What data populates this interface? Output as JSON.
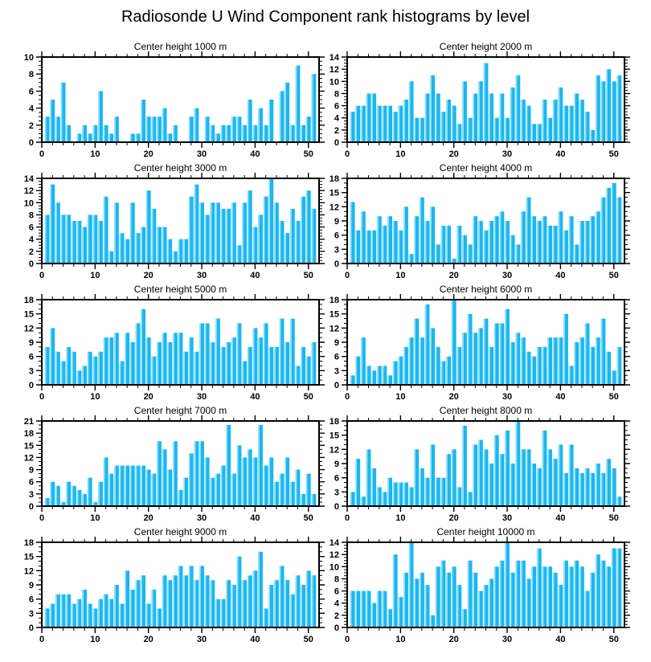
{
  "page_title": "Radiosonde U Wind Component rank histograms by level",
  "grid": {
    "rows": 5,
    "cols": 2
  },
  "colors": {
    "bar_main": "#18b7f3",
    "bar_highlight": "#8fdcf9",
    "axis": "#000000",
    "background": "#ffffff"
  },
  "chart_data": [
    {
      "type": "bar",
      "title": "Center height 1000 m",
      "xlabel": "",
      "ylabel": "",
      "xlim": [
        0,
        52
      ],
      "ylim": [
        0,
        10
      ],
      "xticks": [
        0,
        10,
        20,
        30,
        40,
        50
      ],
      "ytick_step": 2,
      "x_minor_step": 2,
      "y_minor_step": 0.5,
      "x_start": 1,
      "values": [
        3,
        5,
        3,
        7,
        2,
        0,
        1,
        2,
        1,
        2,
        6,
        2,
        1,
        3,
        0,
        0,
        1,
        1,
        5,
        3,
        3,
        3,
        4,
        1,
        2,
        0,
        0,
        3,
        4,
        0,
        3,
        2,
        1,
        2,
        2,
        3,
        3,
        2,
        5,
        2,
        4,
        2,
        5,
        0,
        6,
        7,
        2,
        9,
        2,
        3,
        8
      ]
    },
    {
      "type": "bar",
      "title": "Center height 2000 m",
      "xlabel": "",
      "ylabel": "",
      "xlim": [
        0,
        52
      ],
      "ylim": [
        0,
        14
      ],
      "xticks": [
        0,
        10,
        20,
        30,
        40,
        50
      ],
      "ytick_step": 2,
      "x_minor_step": 2,
      "y_minor_step": 0.5,
      "x_start": 1,
      "values": [
        5,
        6,
        6,
        8,
        8,
        6,
        6,
        6,
        5,
        6,
        7,
        10,
        4,
        4,
        8,
        11,
        8,
        5,
        7,
        6,
        3,
        10,
        4,
        8,
        10,
        13,
        8,
        4,
        8,
        4,
        9,
        11,
        7,
        6,
        3,
        3,
        7,
        4,
        7,
        9,
        6,
        6,
        8,
        7,
        5,
        2,
        11,
        10,
        12,
        10,
        11
      ]
    },
    {
      "type": "bar",
      "title": "Center height 3000 m",
      "xlabel": "",
      "ylabel": "",
      "xlim": [
        0,
        52
      ],
      "ylim": [
        0,
        14
      ],
      "xticks": [
        0,
        10,
        20,
        30,
        40,
        50
      ],
      "ytick_step": 2,
      "x_minor_step": 2,
      "y_minor_step": 0.5,
      "x_start": 1,
      "values": [
        8,
        13,
        10,
        8,
        8,
        7,
        7,
        6,
        8,
        8,
        7,
        11,
        2,
        10,
        5,
        4,
        10,
        5,
        6,
        12,
        9,
        6,
        6,
        4,
        2,
        4,
        4,
        11,
        13,
        10,
        8,
        10,
        10,
        9,
        9,
        10,
        3,
        10,
        12,
        6,
        8,
        11,
        14,
        10,
        7,
        5,
        9,
        7,
        11,
        12,
        9
      ]
    },
    {
      "type": "bar",
      "title": "Center height 4000 m",
      "xlabel": "",
      "ylabel": "",
      "xlim": [
        0,
        52
      ],
      "ylim": [
        0,
        18
      ],
      "xticks": [
        0,
        10,
        20,
        30,
        40,
        50
      ],
      "ytick_step": 3,
      "x_minor_step": 2,
      "y_minor_step": 1,
      "x_start": 1,
      "values": [
        13,
        7,
        11,
        7,
        7,
        10,
        8,
        10,
        9,
        7,
        12,
        2,
        10,
        14,
        9,
        12,
        4,
        8,
        8,
        1,
        8,
        6,
        4,
        10,
        9,
        7,
        9,
        10,
        11,
        9,
        6,
        4,
        11,
        14,
        10,
        9,
        10,
        8,
        8,
        11,
        7,
        10,
        4,
        9,
        9,
        10,
        11,
        14,
        16,
        17,
        14
      ]
    },
    {
      "type": "bar",
      "title": "Center height 5000 m",
      "xlabel": "",
      "ylabel": "",
      "xlim": [
        0,
        52
      ],
      "ylim": [
        0,
        18
      ],
      "xticks": [
        0,
        10,
        20,
        30,
        40,
        50
      ],
      "ytick_step": 3,
      "x_minor_step": 2,
      "y_minor_step": 1,
      "x_start": 1,
      "values": [
        8,
        12,
        7,
        5,
        8,
        7,
        3,
        4,
        7,
        6,
        7,
        10,
        10,
        11,
        5,
        11,
        9,
        13,
        16,
        10,
        6,
        9,
        11,
        9,
        11,
        11,
        7,
        10,
        7,
        13,
        13,
        9,
        14,
        8,
        9,
        10,
        13,
        5,
        8,
        12,
        10,
        13,
        8,
        8,
        14,
        9,
        14,
        4,
        8,
        6,
        9
      ]
    },
    {
      "type": "bar",
      "title": "Center height 6000 m",
      "xlabel": "",
      "ylabel": "",
      "xlim": [
        0,
        52
      ],
      "ylim": [
        0,
        18
      ],
      "xticks": [
        0,
        10,
        20,
        30,
        40,
        50
      ],
      "ytick_step": 3,
      "x_minor_step": 2,
      "y_minor_step": 1,
      "x_start": 1,
      "values": [
        2,
        6,
        10,
        4,
        3,
        4,
        4,
        2,
        5,
        6,
        8,
        10,
        14,
        10,
        17,
        12,
        8,
        5,
        6,
        18,
        8,
        11,
        15,
        11,
        12,
        14,
        8,
        13,
        13,
        16,
        9,
        11,
        10,
        7,
        6,
        8,
        8,
        10,
        10,
        10,
        15,
        4,
        9,
        10,
        13,
        8,
        10,
        14,
        7,
        3,
        8
      ]
    },
    {
      "type": "bar",
      "title": "Center height 7000 m",
      "xlabel": "",
      "ylabel": "",
      "xlim": [
        0,
        52
      ],
      "ylim": [
        0,
        21
      ],
      "xticks": [
        0,
        10,
        20,
        30,
        40,
        50
      ],
      "ytick_step": 3,
      "x_minor_step": 2,
      "y_minor_step": 1,
      "x_start": 1,
      "values": [
        2,
        6,
        5,
        1,
        6,
        5,
        4,
        3,
        7,
        1,
        6,
        12,
        8,
        10,
        10,
        10,
        10,
        10,
        10,
        9,
        8,
        16,
        14,
        9,
        16,
        4,
        7,
        13,
        16,
        16,
        12,
        7,
        8,
        10,
        20,
        8,
        15,
        12,
        14,
        12,
        20,
        10,
        12,
        6,
        8,
        12,
        6,
        9,
        3,
        8,
        3
      ]
    },
    {
      "type": "bar",
      "title": "Center height 8000 m",
      "xlabel": "",
      "ylabel": "",
      "xlim": [
        0,
        52
      ],
      "ylim": [
        0,
        18
      ],
      "xticks": [
        0,
        10,
        20,
        30,
        40,
        50
      ],
      "ytick_step": 3,
      "x_minor_step": 2,
      "y_minor_step": 1,
      "x_start": 1,
      "values": [
        3,
        10,
        2,
        12,
        8,
        4,
        3,
        6,
        5,
        5,
        5,
        4,
        12,
        8,
        6,
        13,
        6,
        6,
        11,
        12,
        4,
        17,
        3,
        13,
        14,
        12,
        9,
        15,
        11,
        16,
        9,
        18,
        12,
        12,
        9,
        8,
        16,
        12,
        10,
        13,
        7,
        13,
        8,
        7,
        8,
        7,
        9,
        7,
        10,
        8,
        2
      ]
    },
    {
      "type": "bar",
      "title": "Center height 9000 m",
      "xlabel": "",
      "ylabel": "",
      "xlim": [
        0,
        52
      ],
      "ylim": [
        0,
        18
      ],
      "xticks": [
        0,
        10,
        20,
        30,
        40,
        50
      ],
      "ytick_step": 3,
      "x_minor_step": 2,
      "y_minor_step": 1,
      "x_start": 1,
      "values": [
        4,
        5,
        7,
        7,
        7,
        5,
        6,
        8,
        5,
        4,
        6,
        7,
        6,
        9,
        5,
        12,
        8,
        10,
        11,
        5,
        8,
        4,
        11,
        10,
        11,
        13,
        11,
        13,
        10,
        13,
        11,
        10,
        6,
        6,
        10,
        9,
        15,
        10,
        11,
        12,
        16,
        4,
        9,
        10,
        13,
        10,
        7,
        11,
        9,
        12,
        11
      ]
    },
    {
      "type": "bar",
      "title": "Center height 10000 m",
      "xlabel": "",
      "ylabel": "",
      "xlim": [
        0,
        52
      ],
      "ylim": [
        0,
        14
      ],
      "xticks": [
        0,
        10,
        20,
        30,
        40,
        50
      ],
      "ytick_step": 2,
      "x_minor_step": 2,
      "y_minor_step": 0.5,
      "x_start": 1,
      "values": [
        6,
        6,
        6,
        6,
        4,
        6,
        6,
        3,
        12,
        5,
        9,
        14,
        8,
        9,
        7,
        2,
        10,
        11,
        9,
        10,
        7,
        3,
        11,
        9,
        6,
        7,
        8,
        10,
        11,
        14,
        9,
        11,
        11,
        8,
        10,
        13,
        10,
        10,
        9,
        7,
        11,
        10,
        11,
        10,
        6,
        9,
        12,
        11,
        10,
        13,
        13
      ]
    }
  ]
}
